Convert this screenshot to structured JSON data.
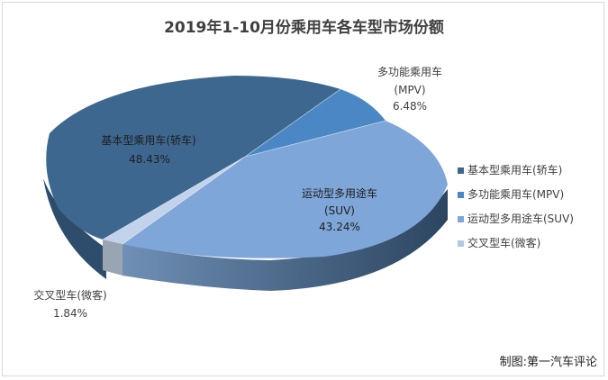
{
  "chart_data": {
    "type": "pie",
    "title": "2019年1-10月份乘用车各车型市场份额",
    "categories": [
      "基本型乘用车(轿车)",
      "多功能乘用车(MPV)",
      "运动型多用途车(SUV)",
      "交叉型车(微客)"
    ],
    "values": [
      48.43,
      6.48,
      43.24,
      1.84
    ],
    "value_labels": [
      "48.43%",
      "6.48%",
      "43.24%",
      "1.84%"
    ],
    "colors": [
      "#3e6790",
      "#4a87c4",
      "#7fa6d9",
      "#b4c8e6"
    ],
    "legend_position": "right",
    "style": "3d"
  },
  "source_note": "制图:第一汽车评论"
}
